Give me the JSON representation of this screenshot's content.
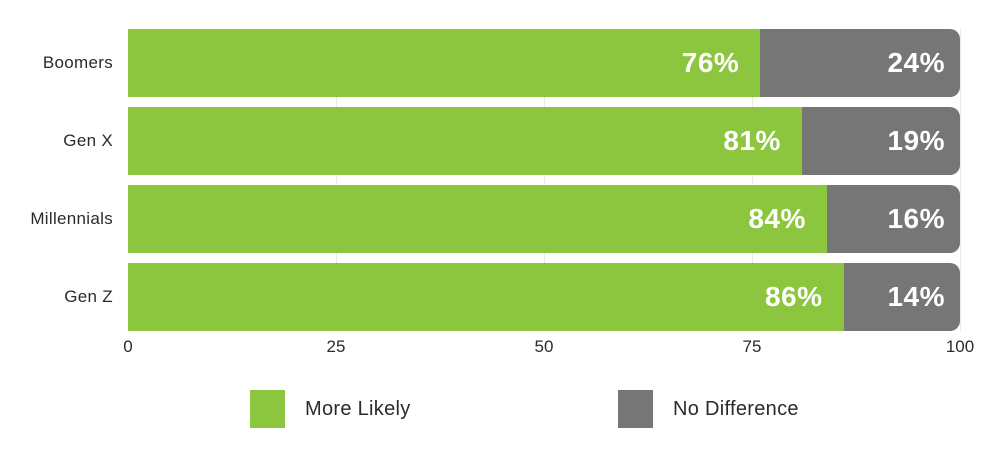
{
  "chart_data": {
    "type": "bar",
    "orientation": "horizontal",
    "stacked": true,
    "title": "",
    "xlabel": "",
    "ylabel": "",
    "categories": [
      "Boomers",
      "Gen X",
      "Millennials",
      "Gen Z"
    ],
    "series": [
      {
        "name": "More Likely",
        "color": "#8CC63F",
        "values": [
          76,
          81,
          84,
          86
        ],
        "labels": [
          "76%",
          "81%",
          "84%",
          "86%"
        ]
      },
      {
        "name": "No Difference",
        "color": "#767676",
        "values": [
          24,
          19,
          16,
          14
        ],
        "labels": [
          "24%",
          "19%",
          "16%",
          "14%"
        ]
      }
    ],
    "x_ticks": [
      "0",
      "25",
      "50",
      "75",
      "100"
    ],
    "xlim": [
      0,
      100
    ],
    "grid": true,
    "gridline_ticks": [
      25,
      50,
      75,
      100
    ],
    "legend_position": "bottom"
  },
  "legend": {
    "items": [
      {
        "label": "More Likely",
        "color": "#8CC63F"
      },
      {
        "label": "No Difference",
        "color": "#767676"
      }
    ]
  },
  "colors": {
    "bar_green": "#8CC63F",
    "bar_gray": "#767676",
    "value_text": "#FFFFFF",
    "axis_text": "#2B2B2B",
    "gridline": "#E9E9E9",
    "background": "#FFFFFF"
  }
}
